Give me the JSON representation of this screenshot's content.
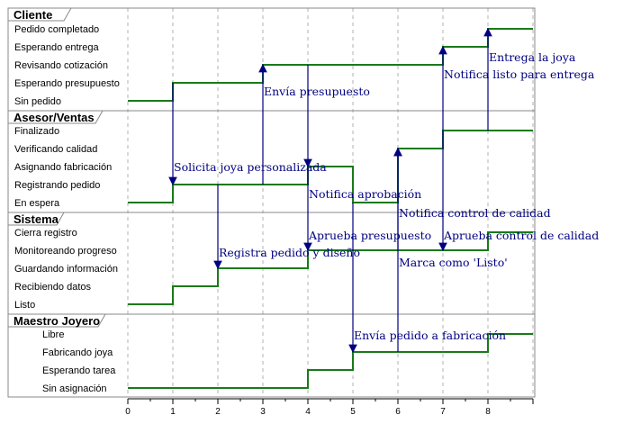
{
  "lanes": [
    {
      "title": "Cliente",
      "states": [
        "Sin pedido",
        "Esperando presupuesto",
        "Revisando cotización",
        "Esperando entrega",
        "Pedido completado"
      ],
      "transitions": [
        [
          0,
          0
        ],
        [
          1,
          1
        ],
        [
          3,
          2
        ],
        [
          7,
          3
        ],
        [
          8,
          4
        ]
      ]
    },
    {
      "title": "Asesor/Ventas",
      "states": [
        "En espera",
        "Registrando pedido",
        "Asignando fabricación",
        "Verificando calidad",
        "Finalizado"
      ],
      "transitions": [
        [
          0,
          0
        ],
        [
          1,
          1
        ],
        [
          4,
          2
        ],
        [
          5,
          0
        ],
        [
          6,
          3
        ],
        [
          7,
          4
        ]
      ]
    },
    {
      "title": "Sistema",
      "states": [
        "Listo",
        "Recibiendo datos",
        "Guardando información",
        "Monitoreando progreso",
        "Cierra registro"
      ],
      "transitions": [
        [
          0,
          0
        ],
        [
          1,
          1
        ],
        [
          2,
          2
        ],
        [
          4,
          3
        ],
        [
          8,
          4
        ]
      ]
    },
    {
      "title": "Maestro Joyero",
      "states": [
        "Sin asignación",
        "Esperando tarea",
        "Fabricando joya",
        "Libre"
      ],
      "transitions": [
        [
          0,
          0
        ],
        [
          4,
          1
        ],
        [
          5,
          2
        ],
        [
          8,
          3
        ]
      ]
    }
  ],
  "axis": {
    "min": 0,
    "max": 9,
    "ticks": [
      "0",
      "1",
      "2",
      "3",
      "4",
      "5",
      "6",
      "7",
      "8"
    ]
  },
  "messages": [
    {
      "label": "Envía presupuesto",
      "from": 1,
      "to": 0,
      "time": 3
    },
    {
      "label": "Solicita joya personalizada",
      "from": 0,
      "to": 1,
      "time": 1
    },
    {
      "label": "Registra pedido y diseño",
      "from": 1,
      "to": 2,
      "time": 2
    },
    {
      "label": "Notifica aprobación",
      "from": 0,
      "to": 1,
      "time": 4
    },
    {
      "label": "Aprueba presupuesto",
      "from": 1,
      "to": 2,
      "time": 4
    },
    {
      "label": "Envía pedido a fabricación",
      "from": 1,
      "to": 3,
      "time": 5
    },
    {
      "label": "Marca como 'Listo'",
      "from": 3,
      "to": 1,
      "time": 6
    },
    {
      "label": "Notifica control de calidad",
      "from": 2,
      "to": 1,
      "time": 6
    },
    {
      "label": "Notifica listo para entrega",
      "from": 1,
      "to": 0,
      "time": 7
    },
    {
      "label": "Aprueba control de calidad",
      "from": 1,
      "to": 2,
      "time": 7
    },
    {
      "label": "Entrega la joya",
      "from": 1,
      "to": 0,
      "time": 8
    }
  ],
  "colors": {
    "signal": "#1a7a1a",
    "message": "#000080",
    "grid": "#a0a0a0",
    "frame": "#888888"
  }
}
